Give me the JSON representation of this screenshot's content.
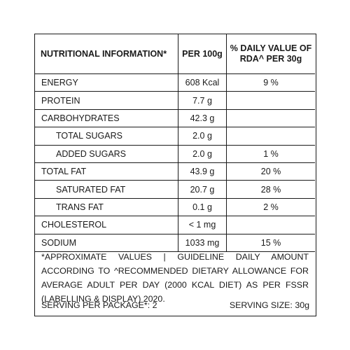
{
  "table": {
    "headers": {
      "nutrient": "NUTRITIONAL INFORMATION*",
      "per100": "PER 100g",
      "rda_line1": "% DAILY VALUE OF",
      "rda_line2": "RDA^ PER 30g"
    },
    "rows": [
      {
        "name": "ENERGY",
        "per100": "608 Kcal",
        "rda": "9 %"
      },
      {
        "name": "PROTEIN",
        "per100": "7.7 g",
        "rda": ""
      },
      {
        "name": "CARBOHYDRATES",
        "per100": "42.3 g",
        "rda": ""
      },
      {
        "name": "TOTAL SUGARS",
        "per100": "2.0 g",
        "rda": ""
      },
      {
        "name": "ADDED SUGARS",
        "per100": "2.0 g",
        "rda": "1 %"
      },
      {
        "name": "TOTAL FAT",
        "per100": "43.9 g",
        "rda": "20 %"
      },
      {
        "name": "SATURATED FAT",
        "per100": "20.7 g",
        "rda": "28 %"
      },
      {
        "name": "TRANS FAT",
        "per100": "0.1 g",
        "rda": "2 %"
      },
      {
        "name": "CHOLESTEROL",
        "per100": "< 1 mg",
        "rda": ""
      },
      {
        "name": "SODIUM",
        "per100": "1033 mg",
        "rda": "15 %"
      }
    ]
  },
  "footnote": "*APPROXIMATE VALUES | GUIDELINE DAILY AMOUNT ACCORDING TO ^RECOMMENDED DIETARY ALLOWANCE FOR AVERAGE ADULT PER DAY (2000 KCAL DIET) AS PER FSSR (LABELLING & DISPLAY) 2020.",
  "serving": {
    "per_package": "SERVING PER PACKAGE*: 2",
    "size": "SERVING SIZE: 30g"
  }
}
